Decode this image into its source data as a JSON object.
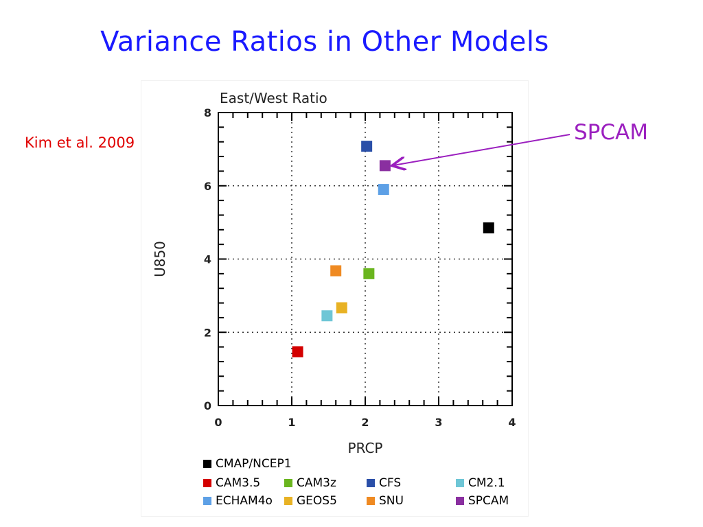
{
  "slide": {
    "title": "Variance Ratios in Other Models",
    "citation": "Kim et al. 2009",
    "callout_label": "SPCAM",
    "callout_target": "SPCAM"
  },
  "chart_data": {
    "type": "scatter",
    "title": "East/West Ratio",
    "xlabel": "PRCP",
    "ylabel": "U850",
    "xlim": [
      0,
      4
    ],
    "ylim": [
      0,
      8
    ],
    "xticks": [
      0,
      1,
      2,
      3,
      4
    ],
    "yticks": [
      0,
      2,
      4,
      6,
      8
    ],
    "x_minor_step": 0.2,
    "y_minor_step": 0.4,
    "grid": true,
    "grid_style": "dotted",
    "legend_position": "bottom",
    "series": [
      {
        "name": "CMAP/NCEP1",
        "color": "#000000",
        "x": [
          3.68
        ],
        "y": [
          4.85
        ]
      },
      {
        "name": "CAM3.5",
        "color": "#d40000",
        "x": [
          1.08
        ],
        "y": [
          1.47
        ]
      },
      {
        "name": "CAM3z",
        "color": "#6ab51e",
        "x": [
          2.05
        ],
        "y": [
          3.6
        ]
      },
      {
        "name": "CFS",
        "color": "#2a4fa8",
        "x": [
          2.02
        ],
        "y": [
          7.08
        ]
      },
      {
        "name": "CM2.1",
        "color": "#6ec6d6",
        "x": [
          1.48
        ],
        "y": [
          2.45
        ]
      },
      {
        "name": "ECHAM4o",
        "color": "#5da0e6",
        "x": [
          2.25
        ],
        "y": [
          5.9
        ]
      },
      {
        "name": "GEOS5",
        "color": "#e8b224",
        "x": [
          1.68
        ],
        "y": [
          2.67
        ]
      },
      {
        "name": "SNU",
        "color": "#ef8a22",
        "x": [
          1.6
        ],
        "y": [
          3.68
        ]
      },
      {
        "name": "SPCAM",
        "color": "#8a2fa0",
        "x": [
          2.27
        ],
        "y": [
          6.55
        ]
      }
    ]
  }
}
